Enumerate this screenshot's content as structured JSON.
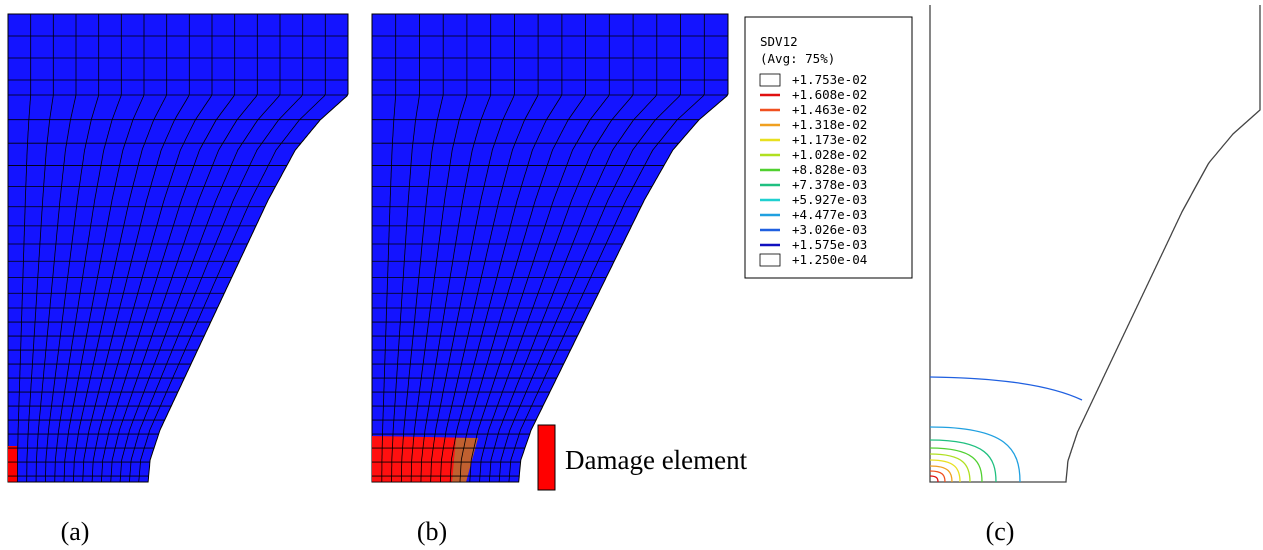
{
  "legend": {
    "title": "SDV12",
    "subtitle": "(Avg: 75%)",
    "levels": [
      "+1.753e-02",
      "+1.608e-02",
      "+1.463e-02",
      "+1.318e-02",
      "+1.173e-02",
      "+1.028e-02",
      "+8.828e-03",
      "+7.378e-03",
      "+5.927e-03",
      "+4.477e-03",
      "+3.026e-03",
      "+1.575e-03",
      "+1.250e-04"
    ],
    "colors": [
      "#ffffff",
      "#e01010",
      "#f05020",
      "#f0a020",
      "#e8e020",
      "#b0e020",
      "#50d030",
      "#20c080",
      "#20d0d0",
      "#20a0e0",
      "#2060e0",
      "#1010c0",
      "#ffffff"
    ]
  },
  "annotation": "Damage element",
  "panels": [
    "(a)",
    "(b)",
    "(c)"
  ]
}
